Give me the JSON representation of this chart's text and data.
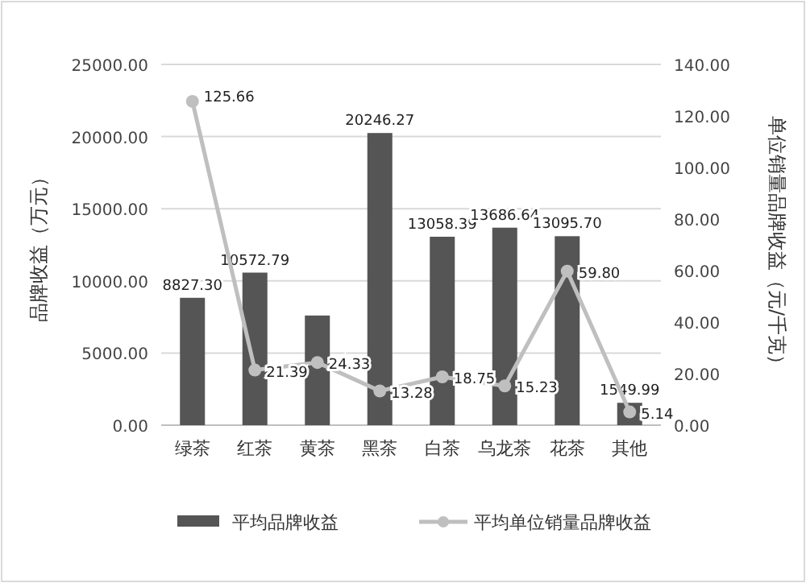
{
  "chart_data": {
    "type": "bar",
    "categories": [
      "绿茶",
      "红茶",
      "黄茶",
      "黑茶",
      "白茶",
      "乌龙茶",
      "花茶",
      "其他"
    ],
    "ylabel": "品牌收益（万元）",
    "y2label": "单位销量品牌收益（元/千克）",
    "ylim": [
      0,
      25000
    ],
    "yticks": [
      {
        "value": 0,
        "label": "0.00"
      },
      {
        "value": 5000,
        "label": "5000.00"
      },
      {
        "value": 10000,
        "label": "10000.00"
      },
      {
        "value": 15000,
        "label": "15000.00"
      },
      {
        "value": 20000,
        "label": "20000.00"
      },
      {
        "value": 25000,
        "label": "25000.00"
      }
    ],
    "y2lim": [
      0,
      140
    ],
    "y2ticks": [
      {
        "value": 0,
        "label": "0.00"
      },
      {
        "value": 20,
        "label": "20.00"
      },
      {
        "value": 40,
        "label": "40.00"
      },
      {
        "value": 60,
        "label": "60.00"
      },
      {
        "value": 80,
        "label": "80.00"
      },
      {
        "value": 100,
        "label": "100.00"
      },
      {
        "value": 120,
        "label": "120.00"
      },
      {
        "value": 140,
        "label": "140.00"
      }
    ],
    "grid": "y",
    "legend": "bottom",
    "marker": "circle",
    "series": [
      {
        "name": "平均品牌收益",
        "color": "#555555",
        "values": [
          8827.3,
          10572.79,
          7600,
          20246.27,
          13058.39,
          13686.64,
          13095.7,
          1549.99
        ],
        "value_labels": [
          "8827.30",
          "10572.79",
          null,
          "20246.27",
          "13058.39",
          "13686.64",
          "13095.70",
          "1549.99"
        ]
      },
      {
        "name": "平均单位销量品牌收益",
        "type": "line",
        "axis": "y2",
        "color": "#bfbfbf",
        "values": [
          125.66,
          21.39,
          24.33,
          13.28,
          18.75,
          15.23,
          59.8,
          5.14
        ],
        "value_labels": [
          "125.66",
          "21.39",
          "24.33",
          "13.28",
          "18.75",
          "15.23",
          "59.80",
          "5.14"
        ]
      }
    ]
  }
}
